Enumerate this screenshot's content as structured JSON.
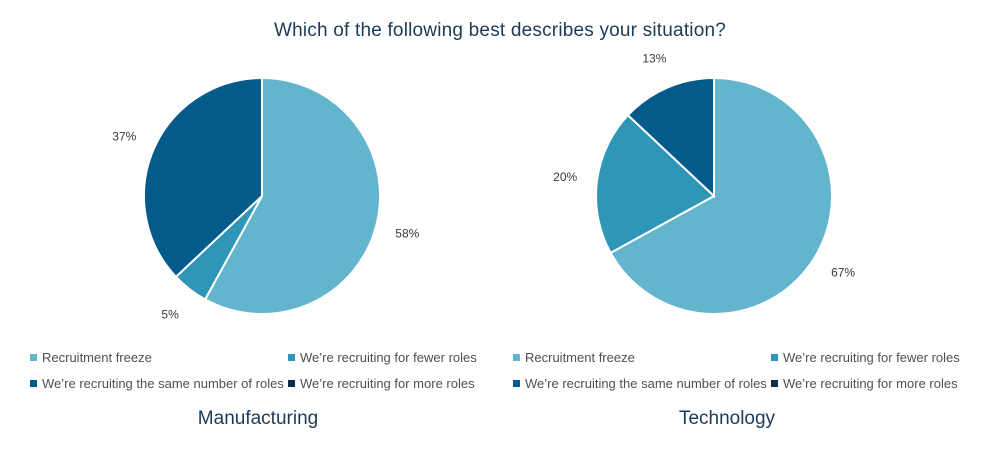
{
  "title": "Which of the following best describes your situation?",
  "colors": {
    "recruitment_freeze": "#62b5cc",
    "fewer_roles": "#2e97b7",
    "same_roles": "#035b8b",
    "more_roles": "#0d2b4d"
  },
  "chart_data": [
    {
      "type": "pie",
      "title": "Manufacturing",
      "categories": [
        "Recruitment freeze",
        "We’re recruiting for fewer roles",
        "We’re recruiting the same number of roles",
        "We’re recruiting for more roles"
      ],
      "values": [
        58,
        5,
        37,
        0
      ],
      "labels": [
        "58%",
        "5%",
        "37%",
        ""
      ],
      "legend": [
        "Recruitment freeze",
        "We’re recruiting for fewer roles",
        "We’re recruiting the same number of roles",
        "We’re recruiting for more roles"
      ],
      "legend_position": "bottom"
    },
    {
      "type": "pie",
      "title": "Technology",
      "categories": [
        "Recruitment freeze",
        "We’re recruiting for fewer roles",
        "We’re recruiting the same number of roles",
        "We’re recruiting for more roles"
      ],
      "values": [
        67,
        20,
        13,
        0
      ],
      "labels": [
        "67%",
        "20%",
        "13%",
        ""
      ],
      "legend": [
        "Recruitment freeze",
        "We’re recruiting for fewer roles",
        "We’re recruiting the same number of roles",
        "We’re recruiting for more roles"
      ],
      "legend_position": "bottom"
    }
  ]
}
